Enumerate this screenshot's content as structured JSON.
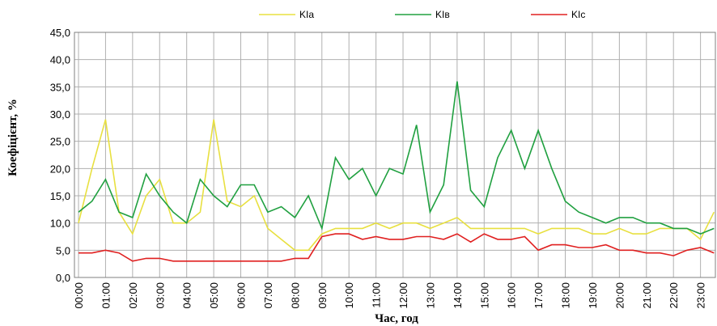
{
  "chart_data": {
    "type": "line",
    "x_label": "Час, год",
    "y_label": "Коефіцієнт, %",
    "x": [
      0,
      0.5,
      1,
      1.5,
      2,
      2.5,
      3,
      3.5,
      4,
      4.5,
      5,
      5.5,
      6,
      6.5,
      7,
      7.5,
      8,
      8.5,
      9,
      9.5,
      10,
      10.5,
      11,
      11.5,
      12,
      12.5,
      13,
      13.5,
      14,
      14.5,
      15,
      15.5,
      16,
      16.5,
      17,
      17.5,
      18,
      18.5,
      19,
      19.5,
      20,
      20.5,
      21,
      21.5,
      22,
      22.5,
      23,
      23.5
    ],
    "series": [
      {
        "name": "KIa",
        "color": "#e8e040",
        "values": [
          10,
          20,
          29,
          12,
          8,
          15,
          18,
          10,
          10,
          12,
          29,
          14,
          13,
          15,
          9,
          7,
          5,
          5,
          8,
          9,
          9,
          9,
          10,
          9,
          10,
          10,
          9,
          10,
          11,
          9,
          9,
          9,
          9,
          9,
          8,
          9,
          9,
          9,
          8,
          8,
          9,
          8,
          8,
          9,
          9,
          9,
          7,
          12
        ]
      },
      {
        "name": "KIв",
        "color": "#20a040",
        "values": [
          12,
          14,
          18,
          12,
          11,
          19,
          15,
          12,
          10,
          18,
          15,
          13,
          17,
          17,
          12,
          13,
          11,
          15,
          9,
          22,
          18,
          20,
          15,
          20,
          19,
          28,
          12,
          17,
          36,
          16,
          13,
          22,
          27,
          20,
          27,
          20,
          14,
          12,
          11,
          10,
          11,
          11,
          10,
          10,
          9,
          9,
          8,
          9
        ]
      },
      {
        "name": "KIc",
        "color": "#e02020",
        "values": [
          4.5,
          4.5,
          5,
          4.5,
          3,
          3.5,
          3.5,
          3,
          3,
          3,
          3,
          3,
          3,
          3,
          3,
          3,
          3.5,
          3.5,
          7.5,
          8,
          8,
          7,
          7.5,
          7,
          7,
          7.5,
          7.5,
          7,
          8,
          6.5,
          8,
          7,
          7,
          7.5,
          5,
          6,
          6,
          5.5,
          5.5,
          6,
          5,
          5,
          4.5,
          4.5,
          4,
          5,
          5.5,
          4.5
        ]
      }
    ],
    "xlim": [
      -0.15,
      23.55
    ],
    "xticks": [
      {
        "value": 0,
        "label": "00:00"
      },
      {
        "value": 1,
        "label": "01:00"
      },
      {
        "value": 2,
        "label": "02:00"
      },
      {
        "value": 3,
        "label": "03:00"
      },
      {
        "value": 4,
        "label": "04:00"
      },
      {
        "value": 5,
        "label": "05:00"
      },
      {
        "value": 6,
        "label": "06:00"
      },
      {
        "value": 7,
        "label": "07:00"
      },
      {
        "value": 8,
        "label": "08:00"
      },
      {
        "value": 9,
        "label": "09:00"
      },
      {
        "value": 10,
        "label": "10:00"
      },
      {
        "value": 11,
        "label": "11:00"
      },
      {
        "value": 12,
        "label": "12:00"
      },
      {
        "value": 13,
        "label": "13:00"
      },
      {
        "value": 14,
        "label": "14:00"
      },
      {
        "value": 15,
        "label": "15:00"
      },
      {
        "value": 16,
        "label": "16:00"
      },
      {
        "value": 17,
        "label": "17:00"
      },
      {
        "value": 18,
        "label": "18:00"
      },
      {
        "value": 19,
        "label": "19:00"
      },
      {
        "value": 20,
        "label": "20:00"
      },
      {
        "value": 21,
        "label": "21:00"
      },
      {
        "value": 22,
        "label": "22:00"
      },
      {
        "value": 23,
        "label": "23:00"
      }
    ],
    "ylim": [
      0,
      45
    ],
    "yticks": [
      {
        "value": 0,
        "label": "0,0"
      },
      {
        "value": 5,
        "label": "5,0"
      },
      {
        "value": 10,
        "label": "10,0"
      },
      {
        "value": 15,
        "label": "15,0"
      },
      {
        "value": 20,
        "label": "20,0"
      },
      {
        "value": 25,
        "label": "25,0"
      },
      {
        "value": 30,
        "label": "30,0"
      },
      {
        "value": 35,
        "label": "35,0"
      },
      {
        "value": 40,
        "label": "40,0"
      },
      {
        "value": 45,
        "label": "45,0"
      }
    ],
    "grid": true,
    "legend": "top"
  }
}
